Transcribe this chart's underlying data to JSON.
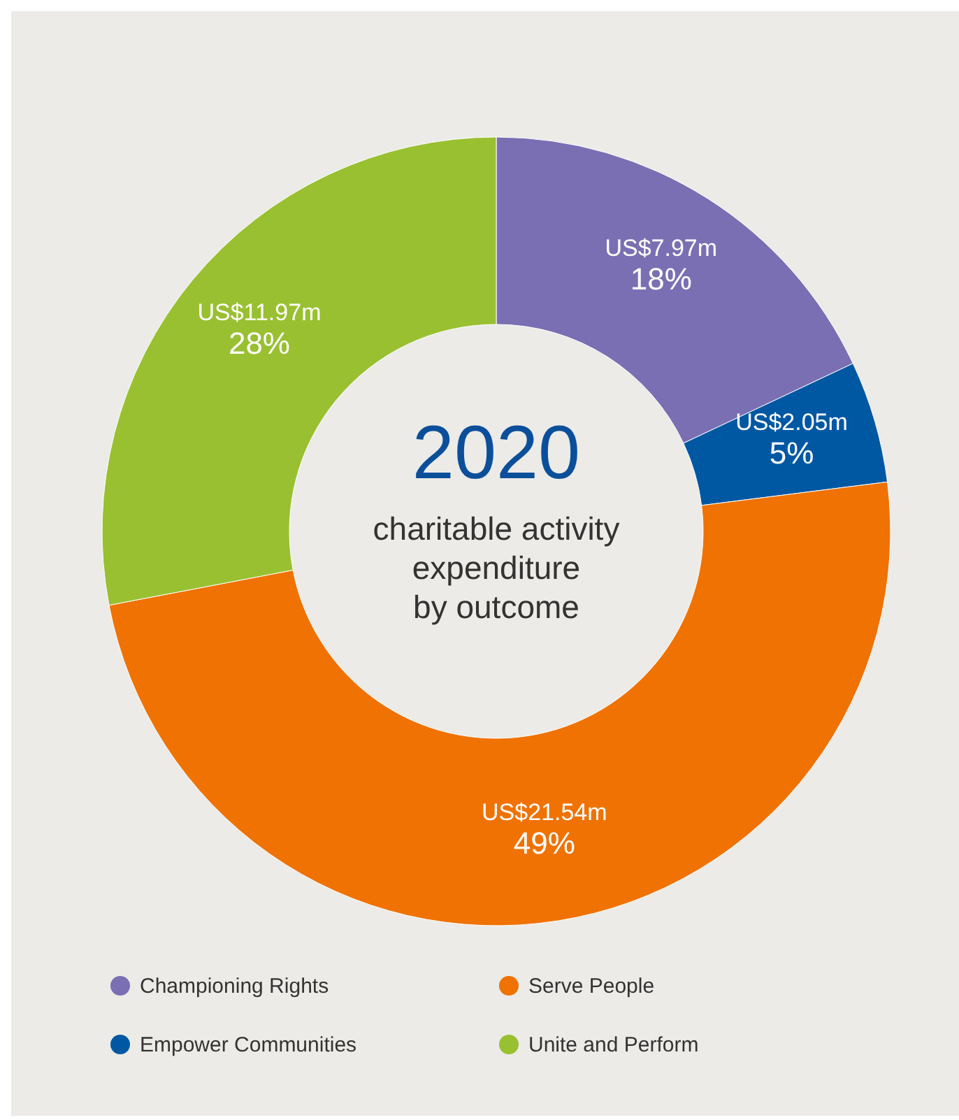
{
  "chart_data": {
    "type": "donut",
    "title": "2020",
    "subtitle": "charitable activity expenditure by outcome",
    "categories": [
      "Championing Rights",
      "Empower Communities",
      "Serve People",
      "Unite and Perform"
    ],
    "values": [
      18,
      5,
      49,
      28
    ],
    "colors": [
      "#7b6fb3",
      "#0058a3",
      "#ef7203",
      "#99c031"
    ],
    "value_labels": [
      "18%",
      "5%",
      "49%",
      "28%"
    ],
    "annotations": [
      {
        "text": "US$7.97m",
        "x": "Championing Rights"
      },
      {
        "text": "US$2.05m",
        "x": "Empower Communities"
      },
      {
        "text": "US$21.54m",
        "x": "Serve People"
      },
      {
        "text": "US$11.97m",
        "x": "Unite and Perform"
      }
    ],
    "legend": "bottom"
  }
}
